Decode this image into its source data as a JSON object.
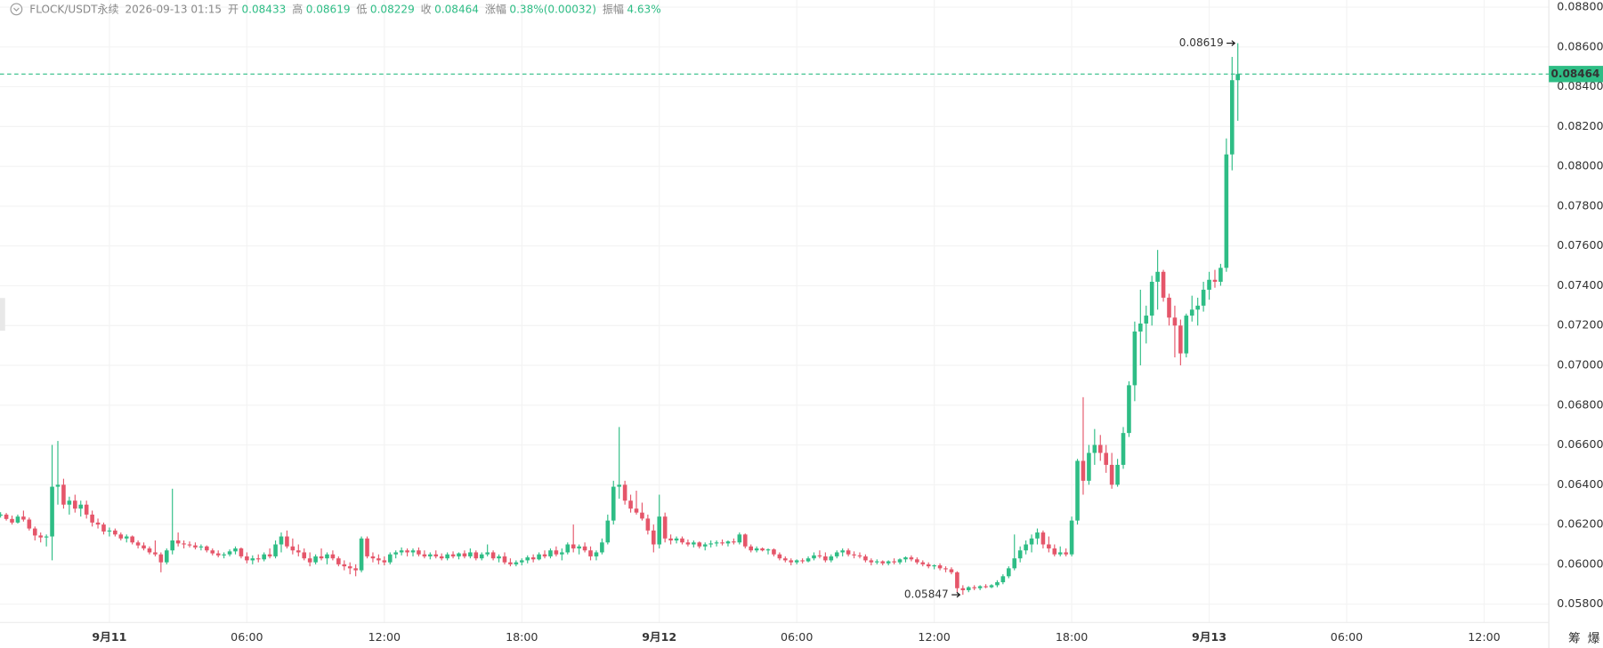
{
  "chart_data": {
    "type": "candlestick",
    "header": {
      "symbol": "FLOCK/USDT永续",
      "time": "2026-09-13 01:15",
      "open_label": "开",
      "high_label": "高",
      "low_label": "低",
      "close_label": "收",
      "change_label": "涨幅",
      "change": "0.38%(0.00032)",
      "amplitude_label": "振幅",
      "amplitude": "4.63%"
    },
    "toolbar": [
      "筹",
      "爆"
    ],
    "up_color": "#2ebd85",
    "down_color": "#e5566a",
    "grid": true,
    "last_price": 0.08464,
    "high_annotation_index": 216,
    "low_annotation_index": 168,
    "xlim": [
      -0.1,
      269.4
    ],
    "xticks": [
      {
        "value": 19,
        "label": "9月11"
      },
      {
        "value": 43,
        "label": "06:00"
      },
      {
        "value": 67,
        "label": "12:00"
      },
      {
        "value": 91,
        "label": "18:00"
      },
      {
        "value": 115,
        "label": "9月12"
      },
      {
        "value": 139,
        "label": "06:00"
      },
      {
        "value": 163,
        "label": "12:00"
      },
      {
        "value": 187,
        "label": "18:00"
      },
      {
        "value": 211,
        "label": "9月13"
      },
      {
        "value": 235,
        "label": "06:00"
      },
      {
        "value": 259,
        "label": "12:00"
      }
    ],
    "ylim": [
      0.05718,
      0.08836
    ],
    "yticks": [
      {
        "value": 0.058,
        "label": "0.05800"
      },
      {
        "value": 0.06,
        "label": "0.06000"
      },
      {
        "value": 0.062,
        "label": "0.06200"
      },
      {
        "value": 0.064,
        "label": "0.06400"
      },
      {
        "value": 0.066,
        "label": "0.06600"
      },
      {
        "value": 0.068,
        "label": "0.06800"
      },
      {
        "value": 0.07,
        "label": "0.07000"
      },
      {
        "value": 0.072,
        "label": "0.07200"
      },
      {
        "value": 0.074,
        "label": "0.07400"
      },
      {
        "value": 0.076,
        "label": "0.07600"
      },
      {
        "value": 0.078,
        "label": "0.07800"
      },
      {
        "value": 0.08,
        "label": "0.08000"
      },
      {
        "value": 0.082,
        "label": "0.08200"
      },
      {
        "value": 0.084,
        "label": "0.08400"
      },
      {
        "value": 0.086,
        "label": "0.08600"
      },
      {
        "value": 0.088,
        "label": "0.08800"
      }
    ],
    "ohlc": [
      [
        0.06245,
        0.06262,
        0.06235,
        0.0625
      ],
      [
        0.0625,
        0.06258,
        0.0622,
        0.06228
      ],
      [
        0.06228,
        0.06245,
        0.062,
        0.0621
      ],
      [
        0.0621,
        0.0625,
        0.06205,
        0.0624
      ],
      [
        0.0624,
        0.0627,
        0.06215,
        0.06225
      ],
      [
        0.06225,
        0.06235,
        0.0617,
        0.0618
      ],
      [
        0.0618,
        0.0619,
        0.0612,
        0.06145
      ],
      [
        0.06145,
        0.0616,
        0.0611,
        0.06135
      ],
      [
        0.06135,
        0.0615,
        0.0609,
        0.0614
      ],
      [
        0.0614,
        0.066,
        0.0602,
        0.0639
      ],
      [
        0.0639,
        0.0662,
        0.063,
        0.064
      ],
      [
        0.064,
        0.0643,
        0.0628,
        0.063
      ],
      [
        0.063,
        0.0634,
        0.0625,
        0.0632
      ],
      [
        0.0632,
        0.0635,
        0.0626,
        0.0628
      ],
      [
        0.0628,
        0.0632,
        0.0624,
        0.063
      ],
      [
        0.063,
        0.0632,
        0.0623,
        0.0625
      ],
      [
        0.0625,
        0.0627,
        0.0619,
        0.0621
      ],
      [
        0.0621,
        0.0623,
        0.0618,
        0.062
      ],
      [
        0.062,
        0.0621,
        0.0615,
        0.06165
      ],
      [
        0.06165,
        0.06185,
        0.0614,
        0.0617
      ],
      [
        0.0617,
        0.0618,
        0.0614,
        0.0615
      ],
      [
        0.0615,
        0.0616,
        0.0612,
        0.0613
      ],
      [
        0.0613,
        0.0615,
        0.0611,
        0.0614
      ],
      [
        0.0614,
        0.06145,
        0.061,
        0.0611
      ],
      [
        0.0611,
        0.0612,
        0.0608,
        0.06095
      ],
      [
        0.06095,
        0.0611,
        0.0607,
        0.0608
      ],
      [
        0.0608,
        0.0609,
        0.0605,
        0.0606
      ],
      [
        0.0606,
        0.0612,
        0.0604,
        0.0605
      ],
      [
        0.0605,
        0.0606,
        0.0596,
        0.0601
      ],
      [
        0.0601,
        0.0608,
        0.06,
        0.0607
      ],
      [
        0.0607,
        0.0638,
        0.0605,
        0.0612
      ],
      [
        0.0612,
        0.0616,
        0.0609,
        0.06105
      ],
      [
        0.06105,
        0.0612,
        0.0608,
        0.061
      ],
      [
        0.061,
        0.06115,
        0.06085,
        0.06095
      ],
      [
        0.06095,
        0.0611,
        0.06075,
        0.06085
      ],
      [
        0.06085,
        0.061,
        0.0607,
        0.0609
      ],
      [
        0.0609,
        0.06095,
        0.0606,
        0.0607
      ],
      [
        0.0607,
        0.0608,
        0.06045,
        0.06055
      ],
      [
        0.06055,
        0.0607,
        0.06035,
        0.06045
      ],
      [
        0.06045,
        0.0606,
        0.0603,
        0.0605
      ],
      [
        0.0605,
        0.06075,
        0.0604,
        0.06065
      ],
      [
        0.06065,
        0.0609,
        0.0605,
        0.0608
      ],
      [
        0.0608,
        0.06085,
        0.0603,
        0.0604
      ],
      [
        0.0604,
        0.0606,
        0.06005,
        0.0602
      ],
      [
        0.0602,
        0.06045,
        0.06,
        0.0603
      ],
      [
        0.0603,
        0.0605,
        0.0601,
        0.06025
      ],
      [
        0.06025,
        0.0606,
        0.06015,
        0.0605
      ],
      [
        0.0605,
        0.0608,
        0.0603,
        0.0604
      ],
      [
        0.0604,
        0.0612,
        0.0603,
        0.061
      ],
      [
        0.061,
        0.0616,
        0.0606,
        0.0614
      ],
      [
        0.0614,
        0.0617,
        0.0608,
        0.0609
      ],
      [
        0.0609,
        0.0613,
        0.0605,
        0.0607
      ],
      [
        0.0607,
        0.061,
        0.0604,
        0.0606
      ],
      [
        0.0606,
        0.0608,
        0.0602,
        0.0603
      ],
      [
        0.0603,
        0.0606,
        0.0599,
        0.0601
      ],
      [
        0.0601,
        0.0605,
        0.06,
        0.0604
      ],
      [
        0.0604,
        0.0608,
        0.0602,
        0.0603
      ],
      [
        0.0603,
        0.0606,
        0.06,
        0.0605
      ],
      [
        0.0605,
        0.0607,
        0.0602,
        0.0603
      ],
      [
        0.0603,
        0.0604,
        0.0599,
        0.06
      ],
      [
        0.06,
        0.0602,
        0.0597,
        0.0599
      ],
      [
        0.0599,
        0.0601,
        0.0595,
        0.0598
      ],
      [
        0.0598,
        0.06,
        0.0594,
        0.0597
      ],
      [
        0.0597,
        0.0614,
        0.0596,
        0.0613
      ],
      [
        0.0613,
        0.0614,
        0.0603,
        0.0604
      ],
      [
        0.0604,
        0.0606,
        0.0601,
        0.0603
      ],
      [
        0.0603,
        0.0605,
        0.06,
        0.0602
      ],
      [
        0.0602,
        0.0604,
        0.05995,
        0.0601
      ],
      [
        0.0601,
        0.0606,
        0.06,
        0.0605
      ],
      [
        0.0605,
        0.0607,
        0.0603,
        0.0606
      ],
      [
        0.0606,
        0.06085,
        0.06045,
        0.0607
      ],
      [
        0.0607,
        0.0608,
        0.0604,
        0.0606
      ],
      [
        0.0606,
        0.0608,
        0.0604,
        0.0607
      ],
      [
        0.0607,
        0.06085,
        0.0604,
        0.0605
      ],
      [
        0.0605,
        0.0607,
        0.0603,
        0.0604
      ],
      [
        0.0604,
        0.0606,
        0.06025,
        0.0605
      ],
      [
        0.0605,
        0.0607,
        0.0603,
        0.0604
      ],
      [
        0.0604,
        0.06055,
        0.0602,
        0.0603
      ],
      [
        0.0603,
        0.0606,
        0.0602,
        0.0605
      ],
      [
        0.0605,
        0.06065,
        0.0603,
        0.0604
      ],
      [
        0.0604,
        0.0606,
        0.06025,
        0.06055
      ],
      [
        0.06055,
        0.0607,
        0.0603,
        0.0604
      ],
      [
        0.0604,
        0.0608,
        0.0603,
        0.0606
      ],
      [
        0.0606,
        0.0607,
        0.0602,
        0.0603
      ],
      [
        0.0603,
        0.0606,
        0.0602,
        0.0605
      ],
      [
        0.0605,
        0.061,
        0.0604,
        0.0606
      ],
      [
        0.0606,
        0.0607,
        0.0602,
        0.0603
      ],
      [
        0.0603,
        0.0605,
        0.0601,
        0.0604
      ],
      [
        0.0604,
        0.0606,
        0.06,
        0.0601
      ],
      [
        0.0601,
        0.0603,
        0.0599,
        0.06
      ],
      [
        0.06,
        0.0602,
        0.0599,
        0.0601
      ],
      [
        0.0601,
        0.0603,
        0.05995,
        0.0602
      ],
      [
        0.0602,
        0.06045,
        0.06005,
        0.06035
      ],
      [
        0.06035,
        0.0605,
        0.0601,
        0.06025
      ],
      [
        0.06025,
        0.0606,
        0.0602,
        0.0605
      ],
      [
        0.0605,
        0.0607,
        0.0603,
        0.0604
      ],
      [
        0.0604,
        0.0608,
        0.0603,
        0.0607
      ],
      [
        0.0607,
        0.0609,
        0.0604,
        0.0605
      ],
      [
        0.0605,
        0.0608,
        0.0602,
        0.0606
      ],
      [
        0.0606,
        0.0611,
        0.0605,
        0.061
      ],
      [
        0.061,
        0.062,
        0.0606,
        0.0608
      ],
      [
        0.0608,
        0.061,
        0.0605,
        0.0609
      ],
      [
        0.0609,
        0.0611,
        0.0606,
        0.0607
      ],
      [
        0.0607,
        0.0609,
        0.0602,
        0.0604
      ],
      [
        0.0604,
        0.0607,
        0.0602,
        0.0606
      ],
      [
        0.0606,
        0.0613,
        0.0605,
        0.0611
      ],
      [
        0.0611,
        0.0625,
        0.061,
        0.0622
      ],
      [
        0.0622,
        0.0642,
        0.062,
        0.0639
      ],
      [
        0.0639,
        0.0669,
        0.0633,
        0.064
      ],
      [
        0.064,
        0.0642,
        0.063,
        0.0632
      ],
      [
        0.0632,
        0.0635,
        0.0626,
        0.0628
      ],
      [
        0.0628,
        0.0637,
        0.0625,
        0.0626
      ],
      [
        0.0626,
        0.0631,
        0.0622,
        0.0623
      ],
      [
        0.0623,
        0.0625,
        0.0615,
        0.0617
      ],
      [
        0.0617,
        0.062,
        0.0606,
        0.061
      ],
      [
        0.061,
        0.0635,
        0.0608,
        0.0624
      ],
      [
        0.0624,
        0.0626,
        0.0611,
        0.0613
      ],
      [
        0.0613,
        0.0615,
        0.061,
        0.0612
      ],
      [
        0.0612,
        0.0614,
        0.06105,
        0.0613
      ],
      [
        0.0613,
        0.0614,
        0.061,
        0.0611
      ],
      [
        0.0611,
        0.06125,
        0.0609,
        0.061
      ],
      [
        0.061,
        0.0612,
        0.06085,
        0.0611
      ],
      [
        0.0611,
        0.06115,
        0.0608,
        0.0609
      ],
      [
        0.0609,
        0.0611,
        0.0607,
        0.061
      ],
      [
        0.061,
        0.0612,
        0.06085,
        0.06105
      ],
      [
        0.06105,
        0.0612,
        0.0609,
        0.0611
      ],
      [
        0.0611,
        0.06125,
        0.06095,
        0.06105
      ],
      [
        0.06105,
        0.0612,
        0.0609,
        0.06115
      ],
      [
        0.06115,
        0.0613,
        0.061,
        0.0611
      ],
      [
        0.0611,
        0.0616,
        0.061,
        0.0615
      ],
      [
        0.0615,
        0.06155,
        0.0608,
        0.0609
      ],
      [
        0.0609,
        0.061,
        0.0606,
        0.0607
      ],
      [
        0.0607,
        0.0609,
        0.0606,
        0.0608
      ],
      [
        0.0608,
        0.06085,
        0.06065,
        0.0607
      ],
      [
        0.0607,
        0.0608,
        0.0605,
        0.06075
      ],
      [
        0.06075,
        0.0608,
        0.0604,
        0.0605
      ],
      [
        0.0605,
        0.0606,
        0.0602,
        0.0603
      ],
      [
        0.0603,
        0.0604,
        0.0601,
        0.0602
      ],
      [
        0.0602,
        0.0603,
        0.05995,
        0.0601
      ],
      [
        0.0601,
        0.06025,
        0.06,
        0.0602
      ],
      [
        0.0602,
        0.0603,
        0.06005,
        0.06015
      ],
      [
        0.06015,
        0.0604,
        0.0601,
        0.0603
      ],
      [
        0.0603,
        0.0606,
        0.0602,
        0.06045
      ],
      [
        0.06045,
        0.0607,
        0.0603,
        0.0604
      ],
      [
        0.0604,
        0.0606,
        0.0601,
        0.0602
      ],
      [
        0.0602,
        0.0605,
        0.0601,
        0.0604
      ],
      [
        0.0604,
        0.0607,
        0.0603,
        0.0606
      ],
      [
        0.0606,
        0.0608,
        0.0604,
        0.0607
      ],
      [
        0.0607,
        0.0608,
        0.0604,
        0.0605
      ],
      [
        0.0605,
        0.06065,
        0.0603,
        0.06045
      ],
      [
        0.06045,
        0.0606,
        0.0603,
        0.0604
      ],
      [
        0.0604,
        0.0605,
        0.0601,
        0.0602
      ],
      [
        0.0602,
        0.0603,
        0.05995,
        0.0601
      ],
      [
        0.0601,
        0.06025,
        0.06,
        0.06015
      ],
      [
        0.06015,
        0.0602,
        0.05995,
        0.06005
      ],
      [
        0.06005,
        0.0602,
        0.05995,
        0.06015
      ],
      [
        0.06015,
        0.0603,
        0.06,
        0.0601
      ],
      [
        0.0601,
        0.0603,
        0.06,
        0.06025
      ],
      [
        0.06025,
        0.0604,
        0.0601,
        0.06035
      ],
      [
        0.06035,
        0.06045,
        0.06015,
        0.06025
      ],
      [
        0.06025,
        0.06035,
        0.06,
        0.0601
      ],
      [
        0.0601,
        0.0602,
        0.0599,
        0.06
      ],
      [
        0.06,
        0.0601,
        0.0598,
        0.0599
      ],
      [
        0.0599,
        0.06,
        0.05975,
        0.05995
      ],
      [
        0.05995,
        0.06005,
        0.0597,
        0.0598
      ],
      [
        0.0598,
        0.0599,
        0.0596,
        0.05975
      ],
      [
        0.05975,
        0.05985,
        0.0595,
        0.0596
      ],
      [
        0.0596,
        0.05965,
        0.0586,
        0.0588
      ],
      [
        0.0588,
        0.05895,
        0.05847,
        0.0587
      ],
      [
        0.0587,
        0.0589,
        0.0586,
        0.05885
      ],
      [
        0.05885,
        0.05895,
        0.0587,
        0.0588
      ],
      [
        0.0588,
        0.05895,
        0.0587,
        0.0589
      ],
      [
        0.0589,
        0.059,
        0.0588,
        0.05885
      ],
      [
        0.05885,
        0.059,
        0.0588,
        0.05895
      ],
      [
        0.05895,
        0.0592,
        0.05885,
        0.0591
      ],
      [
        0.0591,
        0.0595,
        0.059,
        0.0594
      ],
      [
        0.0594,
        0.0599,
        0.0593,
        0.0598
      ],
      [
        0.0598,
        0.0615,
        0.0597,
        0.0603
      ],
      [
        0.0603,
        0.0609,
        0.0601,
        0.0607
      ],
      [
        0.0607,
        0.0612,
        0.0605,
        0.061
      ],
      [
        0.061,
        0.0615,
        0.0606,
        0.0613
      ],
      [
        0.0613,
        0.0618,
        0.061,
        0.0616
      ],
      [
        0.0616,
        0.0617,
        0.0608,
        0.061
      ],
      [
        0.061,
        0.0614,
        0.0606,
        0.0608
      ],
      [
        0.0608,
        0.061,
        0.0604,
        0.0605
      ],
      [
        0.0605,
        0.0609,
        0.0604,
        0.0606
      ],
      [
        0.0606,
        0.0608,
        0.0604,
        0.0605
      ],
      [
        0.0605,
        0.0624,
        0.0604,
        0.0622
      ],
      [
        0.0622,
        0.0653,
        0.062,
        0.0652
      ],
      [
        0.0652,
        0.0684,
        0.0635,
        0.0642
      ],
      [
        0.0642,
        0.066,
        0.064,
        0.0656
      ],
      [
        0.0656,
        0.0668,
        0.065,
        0.066
      ],
      [
        0.066,
        0.0665,
        0.0652,
        0.0656
      ],
      [
        0.0656,
        0.066,
        0.0646,
        0.065
      ],
      [
        0.065,
        0.0656,
        0.0638,
        0.064
      ],
      [
        0.064,
        0.0653,
        0.0639,
        0.065
      ],
      [
        0.065,
        0.0669,
        0.0648,
        0.0666
      ],
      [
        0.0666,
        0.0692,
        0.0664,
        0.069
      ],
      [
        0.069,
        0.0722,
        0.0682,
        0.0717
      ],
      [
        0.0717,
        0.0738,
        0.07,
        0.0721
      ],
      [
        0.0721,
        0.073,
        0.0711,
        0.0725
      ],
      [
        0.0725,
        0.0745,
        0.072,
        0.0742
      ],
      [
        0.0742,
        0.0758,
        0.0728,
        0.0747
      ],
      [
        0.0747,
        0.0748,
        0.0732,
        0.0734
      ],
      [
        0.0734,
        0.0736,
        0.072,
        0.0724
      ],
      [
        0.0724,
        0.073,
        0.0704,
        0.072
      ],
      [
        0.072,
        0.0723,
        0.07,
        0.0706
      ],
      [
        0.0706,
        0.0726,
        0.0704,
        0.0725
      ],
      [
        0.0725,
        0.0735,
        0.0722,
        0.0728
      ],
      [
        0.0728,
        0.0734,
        0.072,
        0.073
      ],
      [
        0.073,
        0.0742,
        0.0727,
        0.0738
      ],
      [
        0.0738,
        0.0747,
        0.0733,
        0.0743
      ],
      [
        0.0743,
        0.0748,
        0.0739,
        0.0742
      ],
      [
        0.0742,
        0.0751,
        0.074,
        0.0749
      ],
      [
        0.0749,
        0.0814,
        0.0747,
        0.0806
      ],
      [
        0.0806,
        0.0855,
        0.0798,
        0.08433
      ],
      [
        0.08433,
        0.08619,
        0.08229,
        0.08464
      ]
    ]
  }
}
